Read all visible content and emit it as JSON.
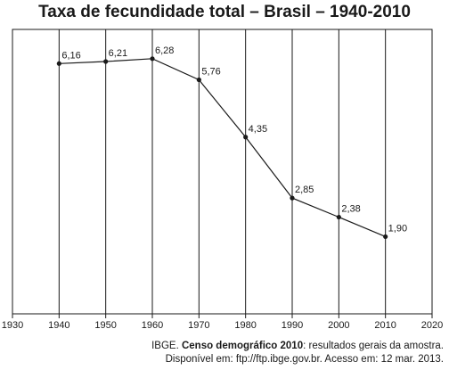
{
  "chart_data": {
    "type": "line",
    "title": "Taxa de fecundidade total – Brasil – 1940-2010",
    "x": [
      1940,
      1950,
      1960,
      1970,
      1980,
      1990,
      2000,
      2010
    ],
    "series": [
      {
        "values": [
          6.16,
          6.21,
          6.28,
          5.76,
          4.35,
          2.85,
          2.38,
          1.9
        ],
        "labels": [
          "6,16",
          "6,21",
          "6,28",
          "5,76",
          "4,35",
          "2,85",
          "2,38",
          "1,90"
        ]
      }
    ],
    "x_ticks": [
      "1930",
      "1940",
      "1950",
      "1960",
      "1970",
      "1980",
      "1990",
      "2000",
      "2010",
      "2020"
    ],
    "xlim": [
      1930,
      2020
    ],
    "ylim": [
      0,
      7
    ],
    "grid": "vertical",
    "xlabel": "",
    "ylabel": ""
  },
  "source": {
    "line1_prefix": "IBGE. ",
    "line1_bold": "Censo demográfico 2010",
    "line1_suffix": ": resultados gerais da amostra.",
    "line2": "Disponível em: ftp://ftp.ibge.gov.br. Acesso em: 12 mar. 2013."
  }
}
